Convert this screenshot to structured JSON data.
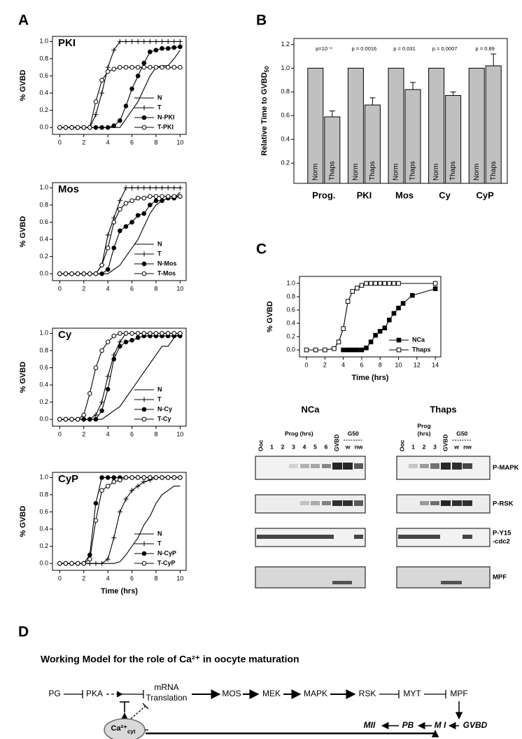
{
  "panel_labels": [
    "A",
    "B",
    "C",
    "D"
  ],
  "chart_data": [
    {
      "type": "line",
      "title": "PKI",
      "y_label": "% GVBD",
      "x": [
        0,
        0.5,
        1,
        1.5,
        2,
        2.5,
        3,
        3.5,
        4,
        4.5,
        5,
        5.5,
        6,
        6.5,
        7,
        7.5,
        8,
        8.5,
        9,
        9.5,
        10
      ],
      "xlim": [
        -0.6,
        10.5
      ],
      "xticks": [
        0,
        2,
        4,
        6,
        8,
        10
      ],
      "ylim": [
        -0.08,
        1.06
      ],
      "yticks": [
        {
          "value": 0,
          "label": "0.0"
        },
        0.2,
        0.4,
        0.6,
        0.8,
        {
          "value": 1,
          "label": "1.0"
        }
      ],
      "legend": "lower right",
      "series": [
        {
          "name": "N",
          "color": "#000000",
          "marker": "none",
          "values": [
            0,
            0,
            0,
            0,
            0,
            0,
            0,
            0,
            0,
            0,
            0,
            0.1,
            0.2,
            0.3,
            0.45,
            0.6,
            0.7,
            0.72,
            0.72,
            0.8,
            0.9
          ]
        },
        {
          "name": "T",
          "color": "#000000",
          "marker": "plus",
          "values": [
            0,
            0,
            0,
            0,
            0,
            0,
            0.15,
            0.4,
            0.7,
            0.9,
            1,
            1,
            1,
            1,
            1,
            1,
            1,
            1,
            1,
            1,
            1
          ]
        },
        {
          "name": "N-PKI",
          "color": "#000000",
          "marker": "filled-circle",
          "values": [
            0,
            0,
            0,
            0,
            0,
            0,
            0,
            0,
            0,
            0.02,
            0.08,
            0.25,
            0.45,
            0.6,
            0.75,
            0.88,
            0.9,
            0.92,
            0.92,
            0.93,
            0.94
          ]
        },
        {
          "name": "T-PKI",
          "color": "#000000",
          "marker": "open-circle",
          "values": [
            0,
            0,
            0,
            0,
            0,
            0,
            0.3,
            0.55,
            0.65,
            0.68,
            0.7,
            0.7,
            0.7,
            0.7,
            0.7,
            0.7,
            0.7,
            0.7,
            0.7,
            0.7,
            0.7
          ]
        }
      ]
    },
    {
      "type": "line",
      "title": "Mos",
      "y_label": "% GVBD",
      "x": [
        0,
        0.5,
        1,
        1.5,
        2,
        2.5,
        3,
        3.5,
        4,
        4.5,
        5,
        5.5,
        6,
        6.5,
        7,
        7.5,
        8,
        8.5,
        9,
        9.5,
        10
      ],
      "xlim": [
        -0.6,
        10.5
      ],
      "xticks": [
        0,
        2,
        4,
        6,
        8,
        10
      ],
      "ylim": [
        -0.08,
        1.06
      ],
      "yticks": [
        {
          "value": 0,
          "label": "0.0"
        },
        0.2,
        0.4,
        0.6,
        0.8,
        {
          "value": 1,
          "label": "1.0"
        }
      ],
      "legend": "lower right",
      "series": [
        {
          "name": "N",
          "color": "#000000",
          "marker": "none",
          "values": [
            0,
            0,
            0,
            0,
            0,
            0,
            0,
            0,
            0,
            0.05,
            0.1,
            0.2,
            0.3,
            0.4,
            0.55,
            0.7,
            0.8,
            0.85,
            0.88,
            0.88,
            0.95
          ]
        },
        {
          "name": "T",
          "color": "#000000",
          "marker": "plus",
          "values": [
            0,
            0,
            0,
            0,
            0,
            0,
            0,
            0.1,
            0.45,
            0.65,
            0.85,
            1,
            1,
            1,
            1,
            1,
            1,
            1,
            1,
            1,
            1
          ]
        },
        {
          "name": "N-Mos",
          "color": "#000000",
          "marker": "filled-circle",
          "values": [
            0,
            0,
            0,
            0,
            0,
            0,
            0,
            0,
            0.05,
            0.3,
            0.5,
            0.55,
            0.6,
            0.68,
            0.7,
            0.8,
            0.85,
            0.85,
            0.88,
            0.88,
            0.9
          ]
        },
        {
          "name": "T-Mos",
          "color": "#000000",
          "marker": "open-circle",
          "values": [
            0,
            0,
            0,
            0,
            0,
            0,
            0,
            0.1,
            0.3,
            0.6,
            0.75,
            0.82,
            0.85,
            0.88,
            0.88,
            0.9,
            0.9,
            0.9,
            0.9,
            0.9,
            0.9
          ]
        }
      ]
    },
    {
      "type": "line",
      "title": "Cy",
      "y_label": "% GVBD",
      "x": [
        0,
        0.5,
        1,
        1.5,
        2,
        2.5,
        3,
        3.5,
        4,
        4.5,
        5,
        5.5,
        6,
        6.5,
        7,
        7.5,
        8,
        8.5,
        9,
        9.5,
        10
      ],
      "xlim": [
        -0.6,
        10.5
      ],
      "xticks": [
        0,
        2,
        4,
        6,
        8,
        10
      ],
      "ylim": [
        -0.08,
        1.06
      ],
      "yticks": [
        {
          "value": 0,
          "label": "0.0"
        },
        0.2,
        0.4,
        0.6,
        0.8,
        {
          "value": 1,
          "label": "1.0"
        }
      ],
      "legend": "lower right",
      "series": [
        {
          "name": "N",
          "color": "#000000",
          "marker": "none",
          "values": [
            0,
            0,
            0,
            0,
            0,
            0,
            0,
            0,
            0.05,
            0.1,
            0.15,
            0.25,
            0.35,
            0.45,
            0.55,
            0.65,
            0.75,
            0.85,
            0.85,
            0.95,
            1
          ]
        },
        {
          "name": "T",
          "color": "#000000",
          "marker": "plus",
          "values": [
            0,
            0,
            0,
            0,
            0,
            0,
            0.05,
            0.2,
            0.5,
            0.75,
            0.9,
            1,
            1,
            1,
            1,
            1,
            1,
            1,
            1,
            1,
            1
          ]
        },
        {
          "name": "N-Cy",
          "color": "#000000",
          "marker": "filled-circle",
          "values": [
            0,
            0,
            0,
            0,
            0,
            0,
            0,
            0.1,
            0.35,
            0.7,
            0.85,
            0.9,
            0.92,
            0.95,
            0.97,
            0.97,
            0.97,
            0.97,
            0.97,
            0.97,
            0.97
          ]
        },
        {
          "name": "T-Cy",
          "color": "#000000",
          "marker": "open-circle",
          "values": [
            0,
            0,
            0,
            0,
            0.05,
            0.3,
            0.6,
            0.8,
            0.9,
            0.97,
            1,
            1,
            1,
            1,
            1,
            1,
            1,
            1,
            1,
            1,
            1
          ]
        }
      ]
    },
    {
      "type": "line",
      "title": "CyP",
      "y_label": "% GVBD",
      "x_label": "Time (hrs)",
      "x": [
        0,
        0.5,
        1,
        1.5,
        2,
        2.5,
        3,
        3.5,
        4,
        4.5,
        5,
        5.5,
        6,
        6.5,
        7,
        7.5,
        8,
        8.5,
        9,
        9.5,
        10
      ],
      "xlim": [
        -0.6,
        10.5
      ],
      "xticks": [
        0,
        2,
        4,
        6,
        8,
        10
      ],
      "ylim": [
        -0.08,
        1.06
      ],
      "yticks": [
        {
          "value": 0,
          "label": "0.0"
        },
        0.2,
        0.4,
        0.6,
        0.8,
        {
          "value": 1,
          "label": "1.0"
        }
      ],
      "legend": "lower right",
      "series": [
        {
          "name": "N",
          "color": "#000000",
          "marker": "none",
          "values": [
            0,
            0,
            0,
            0,
            0,
            0,
            0,
            0,
            0,
            0,
            0.02,
            0.1,
            0.2,
            0.3,
            0.45,
            0.55,
            0.7,
            0.8,
            0.85,
            0.9,
            0.9
          ]
        },
        {
          "name": "T",
          "color": "#000000",
          "marker": "plus",
          "values": [
            0,
            0,
            0,
            0,
            0,
            0,
            0,
            0,
            0.05,
            0.3,
            0.6,
            0.75,
            0.85,
            0.9,
            0.95,
            0.97,
            1,
            1,
            1,
            1,
            1
          ]
        },
        {
          "name": "N-CyP",
          "color": "#000000",
          "marker": "filled-circle",
          "values": [
            0,
            0,
            0,
            0,
            0,
            0.1,
            0.7,
            1,
            1,
            1,
            1,
            1,
            1,
            1,
            1,
            1,
            1,
            1,
            1,
            1,
            1
          ]
        },
        {
          "name": "T-CyP",
          "color": "#000000",
          "marker": "open-circle",
          "values": [
            0,
            0,
            0,
            0,
            0,
            0.05,
            0.5,
            0.85,
            0.9,
            0.95,
            0.97,
            1,
            1,
            1,
            1,
            1,
            1,
            1,
            1,
            1,
            1
          ]
        }
      ]
    },
    {
      "type": "bar",
      "y_label": "Relative Time to GVBD",
      "y_label_subscript": "50",
      "categories": [
        "Prog.",
        "PKI",
        "Mos",
        "Cy",
        "CyP"
      ],
      "series": [
        {
          "name": "Norm",
          "color": "#c0c0c0",
          "values": [
            1,
            1,
            1,
            1,
            1
          ]
        },
        {
          "name": "Thaps",
          "color": "#c0c0c0",
          "values": [
            0.59,
            0.69,
            0.82,
            0.77,
            1.02
          ],
          "errors": [
            0.05,
            0.06,
            0.06,
            0.03,
            0.1
          ]
        }
      ],
      "annotations": [
        "p=10⁻³",
        "p = 0.0016",
        "p = 0.031",
        "p = 0.0007",
        "p = 0.89"
      ],
      "ylim": [
        0.03,
        1.25
      ],
      "yticks": [
        0.2,
        0.4,
        0.6,
        0.8,
        {
          "value": 1,
          "label": "1.0"
        },
        1.2
      ]
    },
    {
      "type": "line",
      "y_label": "% GVBD",
      "x_label": "Time (hrs)",
      "xlim": [
        -0.76,
        14.6
      ],
      "xticks": [
        0,
        2,
        4,
        6,
        8,
        10,
        12,
        14
      ],
      "ylim": [
        -0.105,
        1.105
      ],
      "yticks": [
        {
          "value": 0,
          "label": "0.0"
        },
        0.2,
        0.4,
        0.6,
        0.8,
        {
          "value": 1,
          "label": "1.0"
        }
      ],
      "legend": "lower right",
      "series": [
        {
          "name": "NCa",
          "color": "#000000",
          "marker": "filled-square",
          "x": [
            4,
            4.5,
            5,
            5.5,
            6,
            6.5,
            7,
            7.5,
            8,
            8.5,
            9,
            9.5,
            10,
            10.5,
            11.5,
            14
          ],
          "values": [
            0,
            0,
            0,
            0,
            0,
            0.03,
            0.12,
            0.22,
            0.28,
            0.33,
            0.45,
            0.55,
            0.63,
            0.7,
            0.82,
            0.92
          ]
        },
        {
          "name": "Thaps",
          "color": "#000000",
          "marker": "open-square",
          "x": [
            0,
            1,
            2,
            3,
            3.5,
            4,
            4.5,
            5,
            5.5,
            6,
            6.5,
            7,
            7.5,
            8,
            8.5,
            9,
            9.5,
            10,
            14
          ],
          "values": [
            0,
            0,
            0,
            0.02,
            0.12,
            0.32,
            0.73,
            0.88,
            0.93,
            0.97,
            1,
            1,
            1,
            1,
            1,
            1,
            1,
            1,
            1
          ]
        }
      ]
    }
  ],
  "blots": [
    {
      "title": "NCa",
      "prog_label": [
        "Prog (hrs)"
      ],
      "g50_label": "G50",
      "lanes": [
        "Ooc",
        "1",
        "2",
        "3",
        "4",
        "5",
        "6",
        "GVBD",
        "w",
        "nw"
      ]
    },
    {
      "title": "Thaps",
      "prog_label": [
        "Prog",
        "(hrs)"
      ],
      "g50_label": "G50",
      "lanes": [
        "Ooc",
        "1",
        "2",
        "3",
        "GVBD",
        "w",
        "nw"
      ]
    }
  ],
  "blot_rows": [
    [
      "P-MAPK"
    ],
    [
      "P-RSK"
    ],
    [
      "P-Y15",
      "-cdc2"
    ],
    [
      "MPF"
    ]
  ],
  "diagram": {
    "title": "Working Model for the role of Ca²⁺ in oocyte maturation",
    "nodes": [
      {
        "label": "PG"
      },
      {
        "label": "PKA"
      },
      {
        "label": [
          "mRNA",
          "Translation"
        ]
      },
      {
        "label": "MOS"
      },
      {
        "label": "MEK"
      },
      {
        "label": "MAPK"
      },
      {
        "label": "RSK"
      },
      {
        "label": "MYT"
      },
      {
        "label": "MPF"
      },
      {
        "label": "GVBD"
      },
      {
        "label": "M I"
      },
      {
        "label": "PB"
      },
      {
        "label": "MII"
      },
      {
        "label": "Ca²⁺",
        "subscript": "cyt"
      }
    ]
  }
}
